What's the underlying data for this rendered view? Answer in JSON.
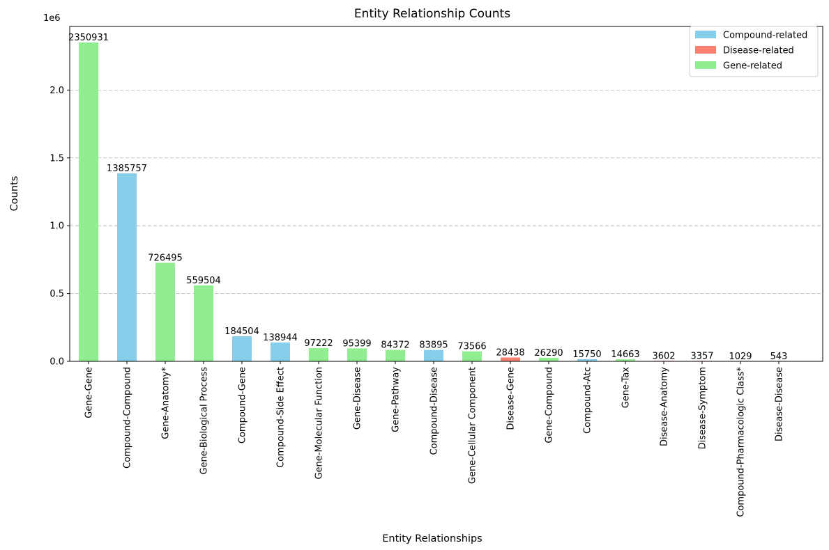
{
  "chart_data": {
    "type": "bar",
    "title": "Entity Relationship Counts",
    "xlabel": "Entity Relationships",
    "ylabel": "Counts",
    "y_offset_text": "1e6",
    "ylim": [
      0,
      2468978
    ],
    "yticks": [
      0,
      500000,
      1000000,
      1500000,
      2000000
    ],
    "ytick_labels": [
      "0.0",
      "0.5",
      "1.0",
      "1.5",
      "2.0"
    ],
    "grid": "y-dashed",
    "legend_position": "top-right",
    "groups": [
      {
        "name": "Compound-related",
        "color": "#87ceeb"
      },
      {
        "name": "Disease-related",
        "color": "#fa8072"
      },
      {
        "name": "Gene-related",
        "color": "#90ee90"
      }
    ],
    "categories": [
      "Gene-Gene",
      "Compound-Compound",
      "Gene-Anatomy*",
      "Gene-Biological Process",
      "Compound-Gene",
      "Compound-Side Effect",
      "Gene-Molecular Function",
      "Gene-Disease",
      "Gene-Pathway",
      "Compound-Disease",
      "Gene-Cellular Component",
      "Disease-Gene",
      "Gene-Compound",
      "Compound-Atc",
      "Gene-Tax",
      "Disease-Anatomy",
      "Disease-Symptom",
      "Compound-Pharmacologic Class*",
      "Disease-Disease"
    ],
    "values": [
      2350931,
      1385757,
      726495,
      559504,
      184504,
      138944,
      97222,
      95399,
      84372,
      83895,
      73566,
      28438,
      26290,
      15750,
      14663,
      3602,
      3357,
      1029,
      543
    ],
    "value_labels": [
      "2350931",
      "1385757",
      "726495",
      "559504",
      "184504",
      "138944",
      "97222",
      "95399",
      "84372",
      "83895",
      "73566",
      "28438",
      "26290",
      "15750",
      "14663",
      "3602",
      "3357",
      "1029",
      "543"
    ],
    "bar_groups": [
      "Gene-related",
      "Compound-related",
      "Gene-related",
      "Gene-related",
      "Compound-related",
      "Compound-related",
      "Gene-related",
      "Gene-related",
      "Gene-related",
      "Compound-related",
      "Gene-related",
      "Disease-related",
      "Gene-related",
      "Compound-related",
      "Gene-related",
      "Disease-related",
      "Disease-related",
      "Compound-related",
      "Disease-related"
    ]
  }
}
